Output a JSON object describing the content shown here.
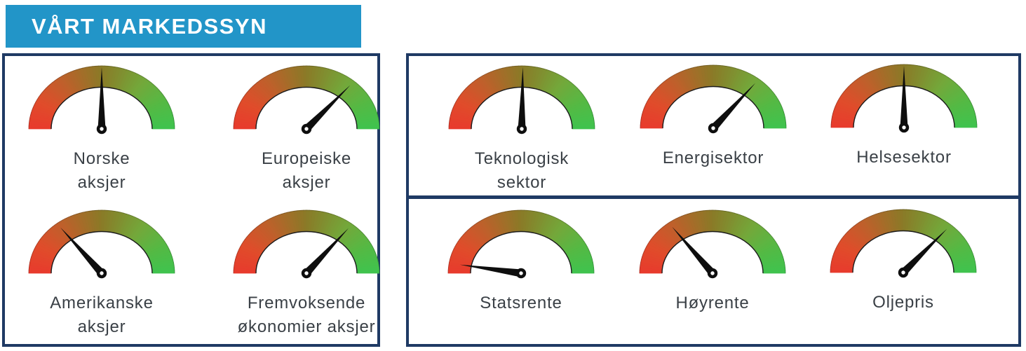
{
  "header": {
    "title": "VÅRT MARKEDSSYN"
  },
  "colors": {
    "header_bg": "#2295c8",
    "panel_border": "#1f3a64",
    "label_text": "#3a4046",
    "needle": "#0e0e0e",
    "gauge_gradient_stops": [
      [
        0.0,
        "#e83a2d"
      ],
      [
        0.15,
        "#e04c2b"
      ],
      [
        0.3,
        "#c05f2b"
      ],
      [
        0.5,
        "#8a7a27"
      ],
      [
        0.7,
        "#74a73a"
      ],
      [
        0.85,
        "#55b944"
      ],
      [
        1.0,
        "#3fc44e"
      ]
    ]
  },
  "chart_data": {
    "type": "gauge",
    "title": "VÅRT MARKEDSSYN",
    "scale": {
      "min_angle_deg": -90,
      "max_angle_deg": 90,
      "neutral_angle_deg": 0,
      "left_meaning": "negative outlook (red)",
      "right_meaning": "positive outlook (green)"
    },
    "gauges": [
      {
        "id": "norske",
        "label": "Norske aksjer",
        "label_lines": [
          "Norske",
          "aksjer"
        ],
        "needle_angle_deg": 0,
        "value_pct": 50
      },
      {
        "id": "europeiske",
        "label": "Europeiske aksjer",
        "label_lines": [
          "Europeiske",
          "aksjer"
        ],
        "needle_angle_deg": 45,
        "value_pct": 75
      },
      {
        "id": "teknologisk",
        "label": "Teknologisk sektor",
        "label_lines": [
          "Teknologisk",
          "sektor"
        ],
        "needle_angle_deg": 1,
        "value_pct": 51
      },
      {
        "id": "energisektor",
        "label": "Energisektor",
        "label_lines": [
          "Energisektor"
        ],
        "needle_angle_deg": 43,
        "value_pct": 74
      },
      {
        "id": "helsesektor",
        "label": "Helsesektor",
        "label_lines": [
          "Helsesektor"
        ],
        "needle_angle_deg": 0,
        "value_pct": 50
      },
      {
        "id": "amerikanske",
        "label": "Amerikanske aksjer",
        "label_lines": [
          "Amerikanske",
          "aksjer"
        ],
        "needle_angle_deg": -42,
        "value_pct": 27
      },
      {
        "id": "fremvoksende",
        "label": "Fremvoksende økonomier aksjer",
        "label_lines": [
          "Fremvoksende",
          "økonomier aksjer"
        ],
        "needle_angle_deg": 43,
        "value_pct": 74
      },
      {
        "id": "statsrente",
        "label": "Statsrente",
        "label_lines": [
          "Statsrente"
        ],
        "needle_angle_deg": -82,
        "value_pct": 4
      },
      {
        "id": "hoyrente",
        "label": "Høyrente",
        "label_lines": [
          "Høyrente"
        ],
        "needle_angle_deg": -41,
        "value_pct": 27
      },
      {
        "id": "oljepris",
        "label": "Oljepris",
        "label_lines": [
          "Oljepris"
        ],
        "needle_angle_deg": 45,
        "value_pct": 75
      }
    ],
    "groups": [
      {
        "name": "stocks-box",
        "gauge_ids": [
          "norske",
          "europeiske",
          "amerikanske",
          "fremvoksende"
        ]
      },
      {
        "name": "sectors-box",
        "gauge_ids": [
          "teknologisk",
          "energisektor",
          "helsesektor"
        ]
      },
      {
        "name": "rates-oil-box",
        "gauge_ids": [
          "statsrente",
          "hoyrente",
          "oljepris"
        ]
      }
    ],
    "legend_position": "none",
    "grid": false
  }
}
